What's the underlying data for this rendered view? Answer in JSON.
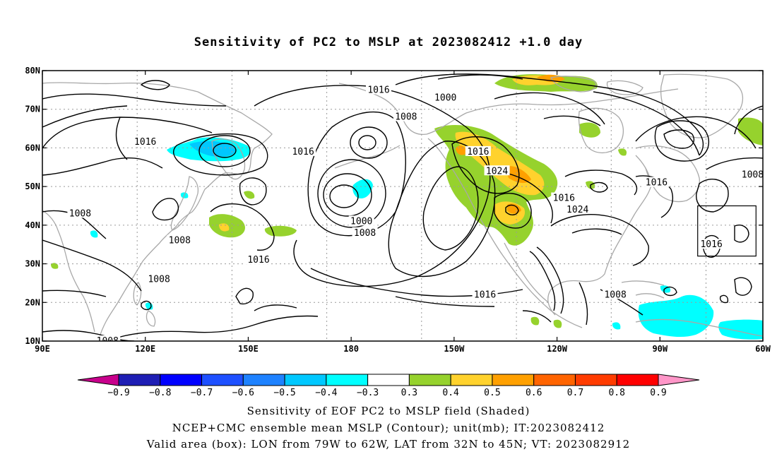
{
  "title": "Sensitivity of PC2 to MSLP at 2023082412 +1.0 day",
  "lat_labels": [
    "80N",
    "70N",
    "60N",
    "50N",
    "40N",
    "30N",
    "20N",
    "10N"
  ],
  "lon_labels": [
    "90E",
    "120E",
    "150E",
    "180",
    "150W",
    "120W",
    "90W",
    "60W"
  ],
  "contour_labels": [
    {
      "text": "1016",
      "lon": -172,
      "lat": 75
    },
    {
      "text": "1008",
      "lon": -164,
      "lat": 68
    },
    {
      "text": "1016",
      "lon": 120,
      "lat": 61.5
    },
    {
      "text": "1016",
      "lon": 166,
      "lat": 59
    },
    {
      "text": "1016",
      "lon": -143,
      "lat": 59
    },
    {
      "text": "1024",
      "lon": -137.5,
      "lat": 54
    },
    {
      "text": "1000",
      "lon": -152.5,
      "lat": 73
    },
    {
      "text": "1016",
      "lon": -91,
      "lat": 51
    },
    {
      "text": "1008",
      "lon": -63,
      "lat": 53
    },
    {
      "text": "1016",
      "lon": -118,
      "lat": 47
    },
    {
      "text": "1024",
      "lon": -114,
      "lat": 44
    },
    {
      "text": "1008",
      "lon": 101,
      "lat": 43
    },
    {
      "text": "1008",
      "lon": 130,
      "lat": 36
    },
    {
      "text": "1016",
      "lon": 153,
      "lat": 31
    },
    {
      "text": "1000",
      "lon": -177,
      "lat": 41
    },
    {
      "text": "1008",
      "lon": -176,
      "lat": 38
    },
    {
      "text": "1008",
      "lon": 124,
      "lat": 26
    },
    {
      "text": "1016",
      "lon": -141,
      "lat": 22
    },
    {
      "text": "1008",
      "lon": -103,
      "lat": 22
    },
    {
      "text": "1016",
      "lon": -75,
      "lat": 35
    },
    {
      "text": "1008",
      "lon": 109,
      "lat": 10
    }
  ],
  "valid_box": {
    "lon_min": -79,
    "lon_max": -62,
    "lat_min": 32,
    "lat_max": 45
  },
  "colorbar": {
    "labels": [
      "−0.9",
      "−0.8",
      "−0.7",
      "−0.6",
      "−0.5",
      "−0.4",
      "−0.3",
      "0.3",
      "0.4",
      "0.5",
      "0.6",
      "0.7",
      "0.8",
      "0.9"
    ],
    "colors": [
      "#c8008c",
      "#1e1eb4",
      "#0000ff",
      "#1e50ff",
      "#1e82ff",
      "#00c8ff",
      "#00ffff",
      "#ffffff",
      "#96d22d",
      "#ffd22d",
      "#ffa000",
      "#ff6400",
      "#ff3c00",
      "#ff0000",
      "#ff96c8"
    ]
  },
  "captions": [
    "Sensitivity of EOF PC2 to MSLP field (Shaded)",
    "NCEP+CMC ensemble mean MSLP (Contour); unit(mb); IT:2023082412",
    "Valid area (box): LON from 79W to 62W, LAT from 32N to 45N; VT: 2023082912"
  ]
}
